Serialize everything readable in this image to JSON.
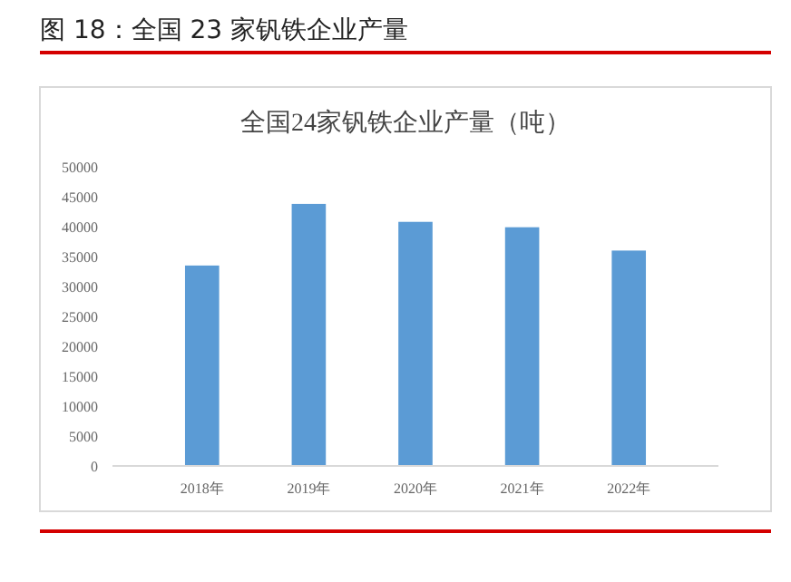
{
  "chart_data": {
    "type": "bar",
    "title": "图 18：全国 23 家钒铁企业产量",
    "subtitle": "全国24家钒铁企业产量（吨）",
    "categories": [
      "2018年",
      "2019年",
      "2020年",
      "2021年",
      "2022年"
    ],
    "values": [
      33500,
      43800,
      40800,
      39900,
      36000
    ],
    "color": "#5b9bd5",
    "ylim": [
      0,
      50000
    ],
    "yticks": [
      0,
      5000,
      10000,
      15000,
      20000,
      25000,
      30000,
      35000,
      40000,
      45000,
      50000
    ],
    "grid": false
  }
}
